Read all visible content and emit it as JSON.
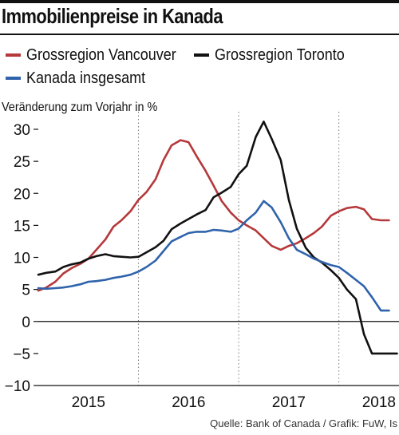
{
  "header": {
    "title": "Immobilienpreise in Kanada"
  },
  "source": "Quelle: Bank of Canada / Grafik: FuW, Is",
  "chart_data": {
    "type": "line",
    "title": "Immobilienpreise in Kanada",
    "ylabel": "Veränderung zum Vorjahr in %",
    "xlabel": "",
    "ylim": [
      -10,
      30
    ],
    "yticks": [
      -10,
      -5,
      0,
      5,
      10,
      15,
      20,
      25,
      30
    ],
    "xlim": [
      2014.5,
      2018.1
    ],
    "year_labels": [
      "2015",
      "2016",
      "2017",
      "2018"
    ],
    "year_centers": [
      2015.0,
      2016.0,
      2017.0,
      2017.9
    ],
    "year_dividers": [
      2015.5,
      2016.5,
      2017.5
    ],
    "grid": "vertical dotted at year boundaries",
    "legend_position": "top",
    "series": [
      {
        "name": "Grossregion Vancouver",
        "color": "#b5383a",
        "x": [
          2014.5,
          2014.58,
          2014.67,
          2014.75,
          2014.83,
          2014.92,
          2015.0,
          2015.08,
          2015.17,
          2015.25,
          2015.33,
          2015.42,
          2015.5,
          2015.58,
          2015.67,
          2015.75,
          2015.83,
          2015.92,
          2016.0,
          2016.08,
          2016.17,
          2016.25,
          2016.33,
          2016.42,
          2016.5,
          2016.58,
          2016.67,
          2016.75,
          2016.83,
          2016.92,
          2017.0,
          2017.08,
          2017.17,
          2017.25,
          2017.33,
          2017.42,
          2017.5,
          2017.58,
          2017.67,
          2017.75,
          2017.83,
          2017.92,
          2018.0
        ],
        "values": [
          4.8,
          5.3,
          6.2,
          7.5,
          8.3,
          9.0,
          9.8,
          11.2,
          12.8,
          14.8,
          15.8,
          17.2,
          19.0,
          20.2,
          22.2,
          25.2,
          27.5,
          28.3,
          28.0,
          25.8,
          23.5,
          21.2,
          18.8,
          17.0,
          15.8,
          15.0,
          14.2,
          13.0,
          11.8,
          11.2,
          11.8,
          12.2,
          13.0,
          13.8,
          14.8,
          16.5,
          17.2,
          17.7,
          17.9,
          17.5,
          16.0,
          15.8,
          15.8
        ]
      },
      {
        "name": "Grossregion Toronto",
        "color": "#111111",
        "x": [
          2014.5,
          2014.58,
          2014.67,
          2014.75,
          2014.83,
          2014.92,
          2015.0,
          2015.08,
          2015.17,
          2015.25,
          2015.33,
          2015.42,
          2015.5,
          2015.58,
          2015.67,
          2015.75,
          2015.83,
          2015.92,
          2016.0,
          2016.08,
          2016.17,
          2016.25,
          2016.33,
          2016.42,
          2016.5,
          2016.58,
          2016.67,
          2016.75,
          2016.83,
          2016.92,
          2017.0,
          2017.08,
          2017.17,
          2017.25,
          2017.33,
          2017.42,
          2017.5,
          2017.58,
          2017.67,
          2017.75,
          2017.83,
          2017.92,
          2018.0,
          2018.08
        ],
        "values": [
          7.3,
          7.6,
          7.8,
          8.5,
          8.9,
          9.2,
          9.8,
          10.2,
          10.5,
          10.2,
          10.1,
          10.0,
          10.1,
          10.8,
          11.6,
          12.6,
          14.4,
          15.3,
          16.0,
          16.7,
          17.4,
          19.4,
          20.1,
          21.0,
          23.0,
          24.3,
          28.8,
          31.2,
          28.5,
          25.2,
          19.0,
          14.5,
          11.5,
          10.0,
          9.2,
          8.0,
          6.8,
          5.0,
          3.5,
          -2.0,
          -5.0,
          -5.0,
          -5.0,
          -5.0
        ]
      },
      {
        "name": "Kanada insgesamt",
        "color": "#2f63ab",
        "x": [
          2014.5,
          2014.58,
          2014.67,
          2014.75,
          2014.83,
          2014.92,
          2015.0,
          2015.08,
          2015.17,
          2015.25,
          2015.33,
          2015.42,
          2015.5,
          2015.58,
          2015.67,
          2015.75,
          2015.83,
          2015.92,
          2016.0,
          2016.08,
          2016.17,
          2016.25,
          2016.33,
          2016.42,
          2016.5,
          2016.58,
          2016.67,
          2016.75,
          2016.83,
          2016.92,
          2017.0,
          2017.08,
          2017.17,
          2017.25,
          2017.33,
          2017.42,
          2017.5,
          2017.58,
          2017.67,
          2017.75,
          2017.83,
          2017.92,
          2018.0
        ],
        "values": [
          5.2,
          5.1,
          5.2,
          5.3,
          5.5,
          5.8,
          6.2,
          6.3,
          6.5,
          6.8,
          7.0,
          7.3,
          7.8,
          8.5,
          9.5,
          11.0,
          12.5,
          13.2,
          13.8,
          14.0,
          14.0,
          14.3,
          14.2,
          14.0,
          14.5,
          15.8,
          17.0,
          18.8,
          17.8,
          15.5,
          13.0,
          11.2,
          10.5,
          9.8,
          9.3,
          8.8,
          8.5,
          7.6,
          6.5,
          5.5,
          3.8,
          1.7,
          1.7
        ]
      }
    ]
  }
}
